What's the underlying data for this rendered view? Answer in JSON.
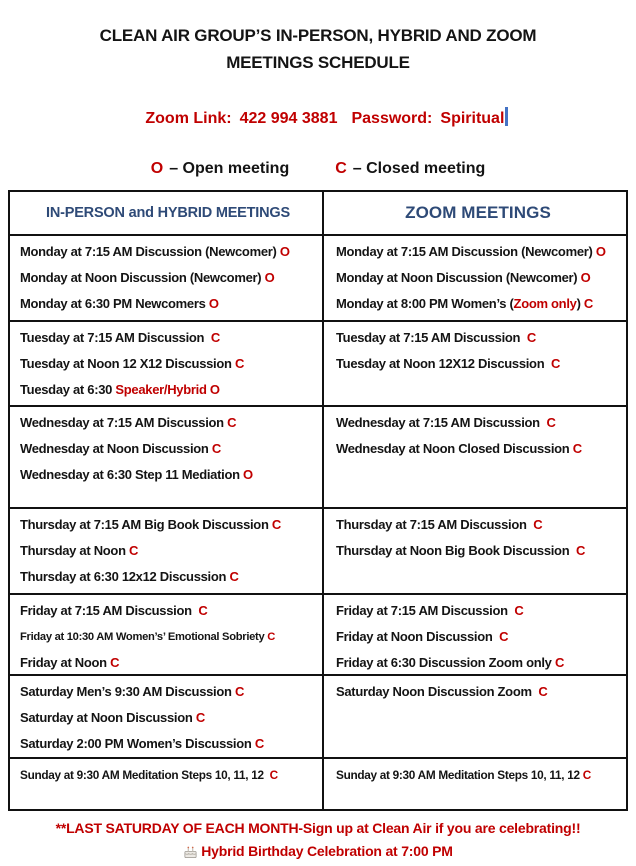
{
  "colors": {
    "red": "#C00000",
    "blue": "#2E4A77",
    "cursor": "#4472C4",
    "text": "#141414",
    "border": "#111111"
  },
  "title": {
    "line1": "CLEAN AIR GROUP’S IN-PERSON, HYBRID AND ZOOM",
    "line2": "MEETINGS SCHEDULE"
  },
  "zoom_link": {
    "label": "Zoom Link:",
    "number": "422 994 3881",
    "password_label": "Password:",
    "password": "Spiritual"
  },
  "legend": {
    "open_symbol": "O",
    "open_text": "– Open meeting",
    "closed_symbol": "C",
    "closed_text": "– Closed meeting"
  },
  "table": {
    "header_left": "IN-PERSON and HYBRID MEETINGS",
    "header_right": "ZOOM MEETINGS",
    "rows": [
      {
        "day": "monday",
        "height": 86,
        "left": [
          {
            "seg": [
              {
                "t": "Monday at 7:15 AM Discussion (Newcomer) ",
                "c": "k"
              },
              {
                "t": "O",
                "c": "r"
              }
            ]
          },
          {
            "seg": [
              {
                "t": "Monday at Noon Discussion (Newcomer) ",
                "c": "k"
              },
              {
                "t": "O",
                "c": "r"
              }
            ]
          },
          {
            "seg": [
              {
                "t": "Monday at 6:30 PM Newcomers ",
                "c": "k"
              },
              {
                "t": "O",
                "c": "r"
              }
            ]
          }
        ],
        "right": [
          {
            "seg": [
              {
                "t": "Monday at 7:15 AM Discussion (Newcomer) ",
                "c": "k"
              },
              {
                "t": "O",
                "c": "r"
              }
            ]
          },
          {
            "seg": [
              {
                "t": "Monday at Noon Discussion (Newcomer) ",
                "c": "k"
              },
              {
                "t": "O",
                "c": "r"
              }
            ]
          },
          {
            "seg": [
              {
                "t": "Monday at 8:00 PM Women’s (",
                "c": "k"
              },
              {
                "t": "Zoom only",
                "c": "r"
              },
              {
                "t": ") ",
                "c": "k"
              },
              {
                "t": "C",
                "c": "r"
              }
            ]
          }
        ]
      },
      {
        "day": "tuesday",
        "height": 85,
        "left": [
          {
            "seg": [
              {
                "t": "Tuesday at 7:15 AM Discussion  ",
                "c": "k"
              },
              {
                "t": "C",
                "c": "r"
              }
            ]
          },
          {
            "seg": [
              {
                "t": "Tuesday at Noon 12 X12 Discussion ",
                "c": "k"
              },
              {
                "t": "C",
                "c": "r"
              }
            ]
          },
          {
            "seg": [
              {
                "t": "Tuesday at 6:30 ",
                "c": "k"
              },
              {
                "t": "Speaker/Hybrid O",
                "c": "r"
              }
            ]
          }
        ],
        "right": [
          {
            "seg": [
              {
                "t": "Tuesday at 7:15 AM Discussion  ",
                "c": "k"
              },
              {
                "t": "C",
                "c": "r"
              }
            ]
          },
          {
            "seg": [
              {
                "t": "Tuesday at Noon 12X12 Discussion  ",
                "c": "k"
              },
              {
                "t": "C",
                "c": "r"
              }
            ]
          }
        ]
      },
      {
        "day": "wednesday",
        "height": 102,
        "left": [
          {
            "seg": [
              {
                "t": "Wednesday at 7:15 AM Discussion ",
                "c": "k"
              },
              {
                "t": "C",
                "c": "r"
              }
            ]
          },
          {
            "seg": [
              {
                "t": "Wednesday at Noon Discussion ",
                "c": "k"
              },
              {
                "t": "C",
                "c": "r"
              }
            ]
          },
          {
            "seg": [
              {
                "t": "Wednesday at 6:30 Step 11 Mediation ",
                "c": "k"
              },
              {
                "t": "O",
                "c": "r"
              }
            ]
          }
        ],
        "right": [
          {
            "seg": [
              {
                "t": "Wednesday at 7:15 AM Discussion  ",
                "c": "k"
              },
              {
                "t": "C",
                "c": "r"
              }
            ]
          },
          {
            "seg": [
              {
                "t": "Wednesday at Noon Closed Discussion ",
                "c": "k"
              },
              {
                "t": "C",
                "c": "r"
              }
            ]
          }
        ]
      },
      {
        "day": "thursday",
        "height": 86,
        "left": [
          {
            "seg": [
              {
                "t": "Thursday at 7:15 AM Big Book Discussion ",
                "c": "k"
              },
              {
                "t": "C",
                "c": "r"
              }
            ]
          },
          {
            "seg": [
              {
                "t": "Thursday at Noon ",
                "c": "k"
              },
              {
                "t": "C",
                "c": "r"
              }
            ]
          },
          {
            "seg": [
              {
                "t": "Thursday at 6:30 12x12 Discussion ",
                "c": "k"
              },
              {
                "t": "C",
                "c": "r"
              }
            ]
          }
        ],
        "right": [
          {
            "seg": [
              {
                "t": "Thursday at 7:15 AM Discussion  ",
                "c": "k"
              },
              {
                "t": "C",
                "c": "r"
              }
            ]
          },
          {
            "seg": [
              {
                "t": "Thursday at Noon Big Book Discussion  ",
                "c": "k"
              },
              {
                "t": "C",
                "c": "r"
              }
            ]
          }
        ]
      },
      {
        "day": "friday",
        "height": 81,
        "left": [
          {
            "seg": [
              {
                "t": "Friday at 7:15 AM Discussion  ",
                "c": "k"
              },
              {
                "t": "C",
                "c": "r"
              }
            ]
          },
          {
            "size": "xs",
            "seg": [
              {
                "t": "Friday at 10:30 AM Women’s’ Emotional Sobriety ",
                "c": "k"
              },
              {
                "t": "C",
                "c": "r"
              }
            ]
          },
          {
            "seg": [
              {
                "t": "Friday at Noon ",
                "c": "k"
              },
              {
                "t": "C",
                "c": "r"
              }
            ]
          }
        ],
        "right": [
          {
            "seg": [
              {
                "t": "Friday at 7:15 AM Discussion  ",
                "c": "k"
              },
              {
                "t": "C",
                "c": "r"
              }
            ]
          },
          {
            "seg": [
              {
                "t": "Friday at Noon Discussion  ",
                "c": "k"
              },
              {
                "t": "C",
                "c": "r"
              }
            ]
          },
          {
            "seg": [
              {
                "t": "Friday at 6:30 Discussion Zoom only ",
                "c": "k"
              },
              {
                "t": "C",
                "c": "r"
              }
            ]
          }
        ]
      },
      {
        "day": "saturday",
        "height": 83,
        "left": [
          {
            "seg": [
              {
                "t": "Saturday Men’s 9:30 AM Discussion ",
                "c": "k"
              },
              {
                "t": "C",
                "c": "r"
              }
            ]
          },
          {
            "seg": [
              {
                "t": "Saturday at Noon Discussion ",
                "c": "k"
              },
              {
                "t": "C",
                "c": "r"
              }
            ]
          },
          {
            "seg": [
              {
                "t": "Saturday 2:00 PM Women’s Discussion ",
                "c": "k"
              },
              {
                "t": "C",
                "c": "r"
              }
            ]
          }
        ],
        "right": [
          {
            "seg": [
              {
                "t": "Saturday Noon Discussion Zoom  ",
                "c": "k"
              },
              {
                "t": "C",
                "c": "r"
              }
            ]
          }
        ]
      },
      {
        "day": "sunday",
        "height": 52,
        "left": [
          {
            "size": "s",
            "seg": [
              {
                "t": "Sunday at 9:30 AM Meditation Steps 10, 11, 12  ",
                "c": "k"
              },
              {
                "t": "C",
                "c": "r"
              }
            ]
          }
        ],
        "right": [
          {
            "size": "s",
            "seg": [
              {
                "t": "Sunday at 9:30 AM Meditation Steps 10, 11, 12 ",
                "c": "k"
              },
              {
                "t": "C",
                "c": "r"
              }
            ]
          }
        ]
      }
    ]
  },
  "footer": {
    "line1": "**LAST SATURDAY OF EACH MONTH-Sign up at Clean Air if you are celebrating!!",
    "line2": "Hybrid Birthday Celebration at 7:00 PM"
  }
}
